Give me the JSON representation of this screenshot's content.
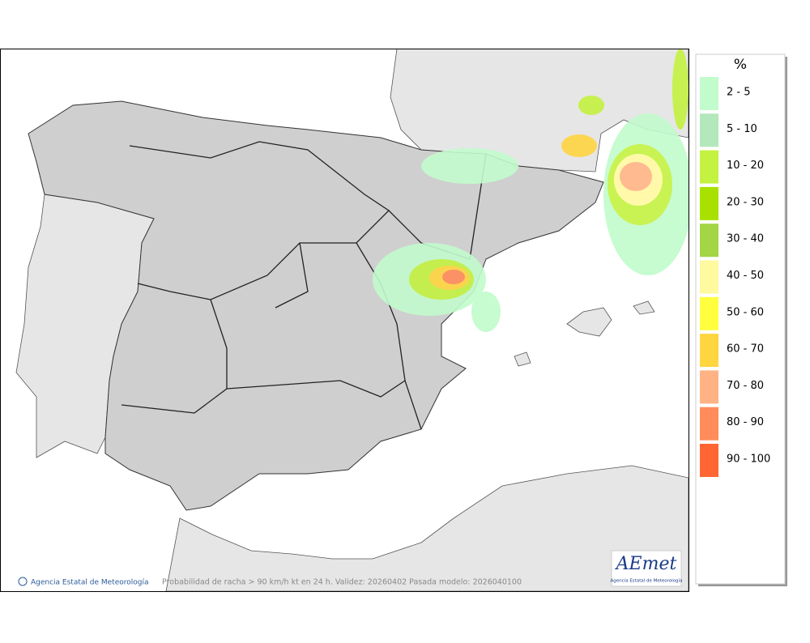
{
  "legend": {
    "title": "%",
    "items": [
      {
        "label": "2 - 5",
        "color": "#c2fbcc"
      },
      {
        "label": "5 - 10",
        "color": "#b2e8bb"
      },
      {
        "label": "10 - 20",
        "color": "#c3f240"
      },
      {
        "label": "20 - 30",
        "color": "#a8e100"
      },
      {
        "label": "30 - 40",
        "color": "#a3d544"
      },
      {
        "label": "40 - 50",
        "color": "#fff9a0"
      },
      {
        "label": "50 - 60",
        "color": "#ffff40"
      },
      {
        "label": "60 - 70",
        "color": "#ffd540"
      },
      {
        "label": "70 - 80",
        "color": "#ffb385"
      },
      {
        "label": "80 - 90",
        "color": "#ff8c5a"
      },
      {
        "label": "90 - 100",
        "color": "#ff6633"
      }
    ]
  },
  "footer": {
    "credit": "Agencia Estatal de Meteorología",
    "caption": "Probabilidad de racha > 90 km/h kt en 24 h. Validez: 20260402 Pasada modelo: 2026040100"
  },
  "logo": {
    "name": "AEmet",
    "subtitle": "Agencia Estatal de Meteorología"
  }
}
